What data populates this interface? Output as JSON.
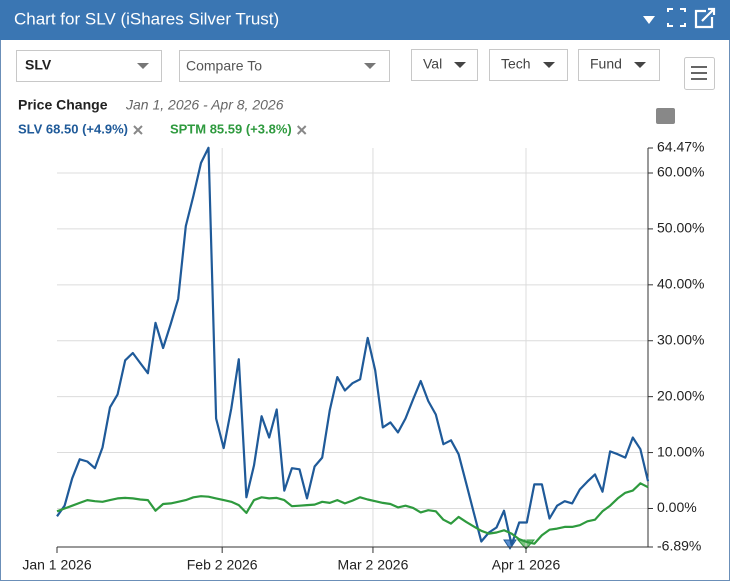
{
  "header": {
    "title": "Chart for SLV (iShares Silver Trust)"
  },
  "controls": {
    "symbol": "SLV",
    "compare": "Compare To",
    "buttons": [
      "Val",
      "Tech",
      "Fund"
    ]
  },
  "chart_data": {
    "type": "line",
    "title": "Price Change",
    "subtitle": "Jan 1, 2026 - Apr 8, 2026",
    "series": [
      {
        "name": "SLV 68.50 (+4.9%)",
        "color": "#1f5a99",
        "values": [
          -1.4,
          0.5,
          5.4,
          8.8,
          8.4,
          7.2,
          10.9,
          18.1,
          20.4,
          26.5,
          27.8,
          26.0,
          24.2,
          33.2,
          28.7,
          33.0,
          37.5,
          50.5,
          55.9,
          61.8,
          64.5,
          16.1,
          10.8,
          17.9,
          26.7,
          2.0,
          7.7,
          16.5,
          12.7,
          17.7,
          3.2,
          7.2,
          7.0,
          1.8,
          7.5,
          9.1,
          17.6,
          23.5,
          21.1,
          22.4,
          23.1,
          30.5,
          24.7,
          14.5,
          15.4,
          13.6,
          16.1,
          19.5,
          22.8,
          19.2,
          16.8,
          11.5,
          12.2,
          9.7,
          4.5,
          -0.7,
          -5.9,
          -4.3,
          -3.4,
          -0.4,
          -6.5,
          -2.5,
          -2.5,
          4.3,
          4.3,
          -1.8,
          0.5,
          1.3,
          0.9,
          3.4,
          4.8,
          6.1,
          3.0,
          10.2,
          9.7,
          9.1,
          12.7,
          10.6,
          4.9
        ]
      },
      {
        "name": "SPTM 85.59 (+3.8%)",
        "color": "#2e9a3e",
        "values": [
          -0.5,
          0,
          0.5,
          1,
          1.5,
          1.3,
          1.2,
          1.5,
          1.8,
          1.9,
          1.8,
          1.6,
          1.5,
          -0.4,
          0.8,
          0.9,
          1.2,
          1.5,
          2.0,
          2.2,
          2.1,
          1.8,
          1.5,
          1.2,
          0.6,
          -0.8,
          1.5,
          2.0,
          1.8,
          1.9,
          1.5,
          0.4,
          0.5,
          0.6,
          0.7,
          1.2,
          1.0,
          1.5,
          0.9,
          1.4,
          2.0,
          1.6,
          1.3,
          1.0,
          0.8,
          0.2,
          0.5,
          0.1,
          -0.7,
          -0.3,
          -0.5,
          -2.0,
          -2.7,
          -1.5,
          -2.4,
          -3.2,
          -4.0,
          -4.5,
          -4.3,
          -3.9,
          -4.5,
          -5.5,
          -6.0,
          -6.3,
          -4.8,
          -3.8,
          -3.6,
          -3.3,
          -3.3,
          -3.0,
          -2.3,
          -2.0,
          -0.5,
          0.5,
          1.8,
          2.8,
          3.2,
          4.5,
          3.8
        ]
      }
    ],
    "xlim": [
      0,
      78
    ],
    "xticks": [
      {
        "value": 0,
        "label": "Jan 1 2026"
      },
      {
        "value": 21.8,
        "label": "Feb 2 2026"
      },
      {
        "value": 41.7,
        "label": "Mar 2 2026"
      },
      {
        "value": 61.9,
        "label": "Apr 1 2026"
      }
    ],
    "ylim": [
      -6.89,
      64.47
    ],
    "yticks": [
      {
        "value": -6.89,
        "label": "-6.89%"
      },
      {
        "value": 0,
        "label": "0.00%"
      },
      {
        "value": 10,
        "label": "10.00%"
      },
      {
        "value": 20,
        "label": "20.00%"
      },
      {
        "value": 30,
        "label": "30.00%"
      },
      {
        "value": 40,
        "label": "40.00%"
      },
      {
        "value": 50,
        "label": "50.00%"
      },
      {
        "value": 60,
        "label": "60.00%"
      },
      {
        "value": 64.47,
        "label": "64.47%"
      }
    ],
    "grid": true
  }
}
